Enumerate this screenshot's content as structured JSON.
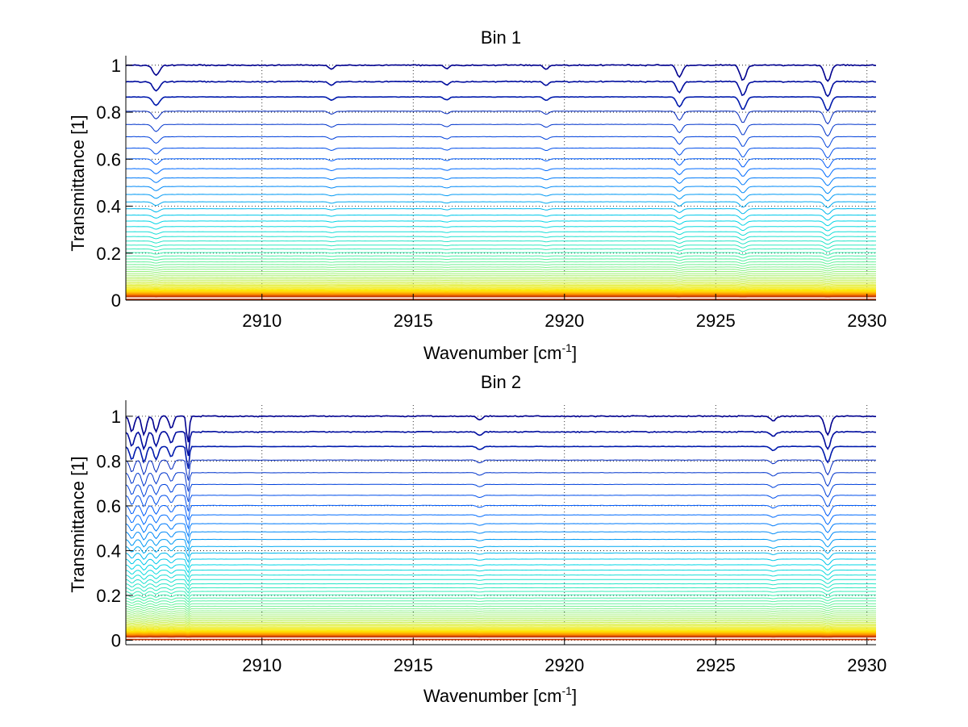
{
  "chart_data": [
    {
      "type": "line",
      "title": "Bin 1",
      "xlabel": "Wavenumber [cm",
      "xlabel_sup": "-1",
      "xlabel_end": "]",
      "ylabel": "Transmittance [1]",
      "xlim": [
        2905.5,
        2930.3
      ],
      "ylim": [
        0,
        1.02
      ],
      "xticks": [
        2910,
        2915,
        2920,
        2925,
        2930
      ],
      "xtick_labels": [
        "2910",
        "2915",
        "2920",
        "2925",
        "2930"
      ],
      "yticks": [
        0,
        0.2,
        0.4,
        0.6,
        0.8,
        1
      ],
      "ytick_labels": [
        "0",
        "0.2",
        "0.4",
        "0.6",
        "0.8",
        "1"
      ],
      "grid": true,
      "series_count": 60,
      "series_levels": {
        "top": 1.0,
        "bottom": 0.0,
        "spacing": "geometric",
        "ratio": 0.93
      },
      "colormap": [
        "#00008f",
        "#0060ff",
        "#00d4e8",
        "#40f0b0",
        "#9cf07a",
        "#e0f050",
        "#ffe800",
        "#ff8c00",
        "#c03000"
      ],
      "absorption_features": [
        {
          "x": 2906.5,
          "depth": 0.03,
          "width": 0.15
        },
        {
          "x": 2912.3,
          "depth": 0.012,
          "width": 0.12
        },
        {
          "x": 2916.1,
          "depth": 0.01,
          "width": 0.12
        },
        {
          "x": 2919.4,
          "depth": 0.012,
          "width": 0.12
        },
        {
          "x": 2923.8,
          "depth": 0.035,
          "width": 0.13
        },
        {
          "x": 2925.9,
          "depth": 0.045,
          "width": 0.14
        },
        {
          "x": 2928.7,
          "depth": 0.05,
          "width": 0.14
        }
      ]
    },
    {
      "type": "line",
      "title": "Bin 2",
      "xlabel": "Wavenumber [cm",
      "xlabel_sup": "-1",
      "xlabel_end": "]",
      "ylabel": "Transmittance [1]",
      "xlim": [
        2905.5,
        2930.3
      ],
      "ylim": [
        -0.02,
        1.05
      ],
      "xticks": [
        2910,
        2915,
        2920,
        2925,
        2930
      ],
      "xtick_labels": [
        "2910",
        "2915",
        "2920",
        "2925",
        "2930"
      ],
      "yticks": [
        0,
        0.2,
        0.4,
        0.6,
        0.8,
        1
      ],
      "ytick_labels": [
        "0",
        "0.2",
        "0.4",
        "0.6",
        "0.8",
        "1"
      ],
      "grid": true,
      "series_count": 60,
      "series_levels": {
        "top": 1.0,
        "bottom": 0.0,
        "spacing": "geometric",
        "ratio": 0.93
      },
      "colormap": [
        "#00008f",
        "#0060ff",
        "#00d4e8",
        "#40f0b0",
        "#9cf07a",
        "#e0f050",
        "#ffe800",
        "#ff8c00",
        "#c03000"
      ],
      "absorption_features": [
        {
          "x": 2905.7,
          "depth": 0.05,
          "width": 0.1
        },
        {
          "x": 2906.1,
          "depth": 0.06,
          "width": 0.1
        },
        {
          "x": 2906.5,
          "depth": 0.05,
          "width": 0.1
        },
        {
          "x": 2907.0,
          "depth": 0.04,
          "width": 0.1
        },
        {
          "x": 2907.55,
          "depth": 0.09,
          "width": 0.06
        },
        {
          "x": 2917.2,
          "depth": 0.012,
          "width": 0.12
        },
        {
          "x": 2926.9,
          "depth": 0.015,
          "width": 0.12
        },
        {
          "x": 2928.7,
          "depth": 0.06,
          "width": 0.13
        }
      ]
    }
  ]
}
